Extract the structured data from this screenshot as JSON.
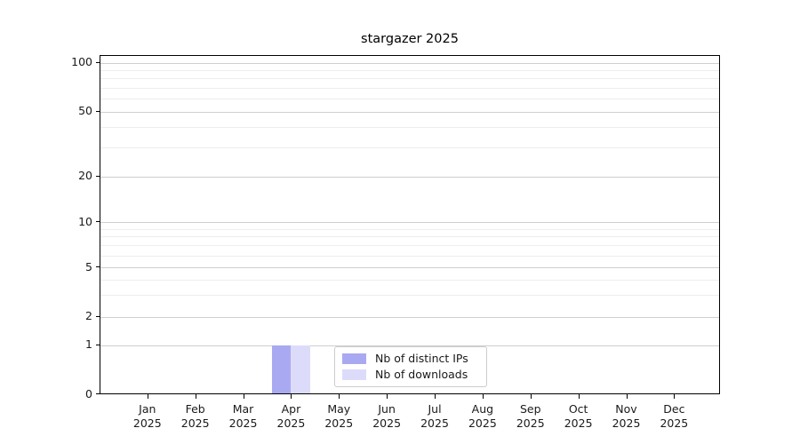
{
  "chart_data": {
    "type": "bar",
    "title": "stargazer 2025",
    "xlabel": "",
    "ylabel": "",
    "x_categories": [
      {
        "month": "Jan",
        "year": "2025"
      },
      {
        "month": "Feb",
        "year": "2025"
      },
      {
        "month": "Mar",
        "year": "2025"
      },
      {
        "month": "Apr",
        "year": "2025"
      },
      {
        "month": "May",
        "year": "2025"
      },
      {
        "month": "Jun",
        "year": "2025"
      },
      {
        "month": "Jul",
        "year": "2025"
      },
      {
        "month": "Aug",
        "year": "2025"
      },
      {
        "month": "Sep",
        "year": "2025"
      },
      {
        "month": "Oct",
        "year": "2025"
      },
      {
        "month": "Nov",
        "year": "2025"
      },
      {
        "month": "Dec",
        "year": "2025"
      }
    ],
    "series": [
      {
        "name": "Nb of distinct IPs",
        "color": "#a9a9f2",
        "values": [
          0,
          0,
          0,
          1,
          0,
          0,
          0,
          0,
          0,
          0,
          0,
          0
        ]
      },
      {
        "name": "Nb of downloads",
        "color": "#dcdcfa",
        "values": [
          0,
          0,
          0,
          1,
          0,
          0,
          0,
          0,
          0,
          0,
          0,
          0
        ]
      }
    ],
    "y_axis": {
      "scale": "log above 1, linear 0-1",
      "ticks": [
        0,
        1,
        2,
        5,
        10,
        20,
        50,
        100
      ],
      "minor_gridlines": [
        3,
        4,
        6,
        7,
        8,
        9,
        30,
        40,
        60,
        70,
        80,
        90
      ],
      "ylim": [
        0,
        110
      ]
    },
    "grid": true,
    "legend": {
      "position": "inside lower-center",
      "entries": [
        "Nb of distinct IPs",
        "Nb of downloads"
      ]
    }
  },
  "colors": {
    "series_1": "#a9a9f2",
    "series_2": "#dcdcfa",
    "major_grid": "#cfcfcf",
    "minor_grid": "#ededed",
    "axis": "#000000"
  }
}
